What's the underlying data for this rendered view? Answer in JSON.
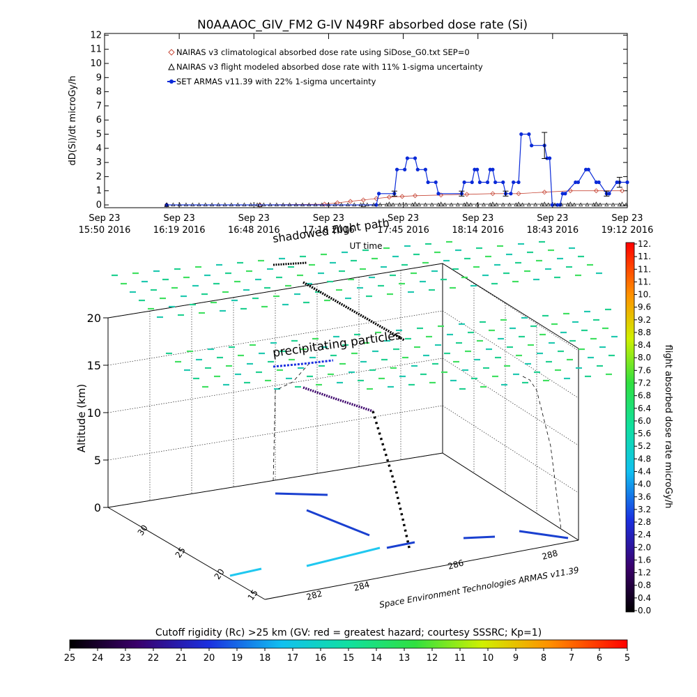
{
  "title": "N0AAAOC_GIV_FM2 G-IV   N49RF  absorbed dose rate (Si)",
  "colors": {
    "nairas_clim": "#c84a3a",
    "nairas_flight": "#000000",
    "armas": "#0a2ad8",
    "axis": "#000000"
  },
  "chart_data": [
    {
      "id": "time_series",
      "type": "line",
      "ylabel": "dD(Si)/dt microGy/h",
      "xlabel": "UT time",
      "ylim": [
        0,
        12
      ],
      "y_ticks": [
        "0",
        "1",
        "2",
        "3",
        "4",
        "5",
        "6",
        "7",
        "8",
        "9",
        "10",
        "11",
        "12"
      ],
      "x_tick_labels": [
        {
          "line1": "Sep 23",
          "line2": "15:50 2016"
        },
        {
          "line1": "Sep 23",
          "line2": "16:19 2016"
        },
        {
          "line1": "Sep 23",
          "line2": "16:48 2016"
        },
        {
          "line1": "Sep 23",
          "line2": "17:16 2016"
        },
        {
          "line1": "Sep 23",
          "line2": "17:45 2016"
        },
        {
          "line1": "Sep 23",
          "line2": "18:14 2016"
        },
        {
          "line1": "Sep 23",
          "line2": "18:43 2016"
        },
        {
          "line1": "Sep 23",
          "line2": "19:12 2016"
        }
      ],
      "x_range_minutes": [
        0,
        202
      ],
      "legend": [
        {
          "symbol": "diamond",
          "color_key": "nairas_clim",
          "label": "NAIRAS v3 climatological absorbed dose rate using SiDose_G0.txt SEP=0"
        },
        {
          "symbol": "triangle",
          "color_key": "nairas_flight",
          "label": "NAIRAS v3 flight modeled absorbed dose rate with 11% 1-sigma uncertainty"
        },
        {
          "symbol": "dot",
          "color_key": "armas",
          "label": "SET ARMAS v11.39 with 22% 1-sigma uncertainty"
        }
      ],
      "series": [
        {
          "name": "NAIRAS v3 climatological absorbed dose rate using SiDose_G0.txt SEP=0",
          "x_minutes": [
            24,
            60,
            85,
            90,
            95,
            100,
            105,
            110,
            115,
            120,
            130,
            140,
            150,
            160,
            170,
            180,
            190,
            200
          ],
          "values": [
            0,
            0,
            0.05,
            0.15,
            0.25,
            0.35,
            0.45,
            0.55,
            0.6,
            0.65,
            0.7,
            0.75,
            0.8,
            0.8,
            0.9,
            1.0,
            1.0,
            1.0
          ]
        },
        {
          "name": "NAIRAS v3 flight modeled absorbed dose rate with 11% 1-sigma uncertainty",
          "x_minutes": [
            24,
            60,
            100,
            110,
            120,
            130,
            140,
            150,
            160,
            170,
            180,
            190,
            200
          ],
          "values": [
            0,
            0,
            0,
            0.05,
            0.05,
            0.05,
            0.05,
            0.05,
            0.05,
            0.05,
            0.05,
            0.05,
            0.05
          ]
        },
        {
          "name": "SET ARMAS v11.39 with 22% 1-sigma uncertainty",
          "x_minutes": [
            24,
            105,
            106,
            112,
            113,
            116,
            117,
            120,
            121,
            124,
            125,
            128,
            129,
            138,
            139,
            142,
            143,
            144,
            145,
            148,
            149,
            150,
            151,
            154,
            155,
            157,
            158,
            160,
            161,
            164,
            165,
            170,
            171,
            172,
            173,
            175,
            176,
            177,
            178,
            182,
            183,
            186,
            187,
            190,
            191,
            194,
            195,
            198,
            199,
            202
          ],
          "values": [
            0,
            0,
            0.8,
            0.8,
            2.5,
            2.5,
            3.3,
            3.3,
            2.5,
            2.5,
            1.6,
            1.6,
            0.8,
            0.8,
            1.6,
            1.6,
            2.5,
            2.5,
            1.6,
            1.6,
            2.5,
            2.5,
            1.6,
            1.6,
            0.8,
            0.8,
            1.6,
            1.6,
            5.0,
            5.0,
            4.2,
            4.2,
            3.3,
            3.3,
            0,
            0,
            0,
            0.8,
            0.8,
            1.6,
            1.6,
            2.5,
            2.5,
            1.6,
            1.6,
            0.8,
            0.8,
            1.6,
            1.6,
            1.6
          ]
        }
      ]
    },
    {
      "id": "flight_3d",
      "type": "scatter",
      "ylabel": "Altitude (km)",
      "z_ticks": [
        "0",
        "5",
        "10",
        "15",
        "20"
      ],
      "lat_ticks": [
        "15",
        "20",
        "25",
        "30"
      ],
      "lon_ticks": [
        "282",
        "284",
        "286",
        "288"
      ],
      "annotations": [
        "shadowed flight path",
        "precipitating particles"
      ],
      "credit": "Space Environment Technologies ARMAS v11.39"
    }
  ],
  "dose_colorbar": {
    "label": "flight absorbed dose rate microGy/h",
    "ticks": [
      "0.0",
      "0.4",
      "0.8",
      "1.2",
      "1.6",
      "2.0",
      "2.4",
      "2.8",
      "3.2",
      "3.6",
      "4.0",
      "4.4",
      "4.8",
      "5.2",
      "5.6",
      "6.0",
      "6.4",
      "6.8",
      "7.2",
      "7.6",
      "8.0",
      "8.4",
      "8.8",
      "9.2",
      "9.6",
      "10.",
      "11.",
      "11.",
      "11.",
      "12."
    ]
  },
  "rigidity_colorbar": {
    "label": "Cutoff rigidity (Rc) >25 km (GV: red = greatest hazard; courtesy SSSRC; Kp=1)",
    "ticks": [
      "25",
      "24",
      "23",
      "22",
      "21",
      "20",
      "19",
      "18",
      "17",
      "16",
      "15",
      "14",
      "13",
      "12",
      "11",
      "10",
      "9",
      "8",
      "7",
      "6",
      "5"
    ]
  }
}
